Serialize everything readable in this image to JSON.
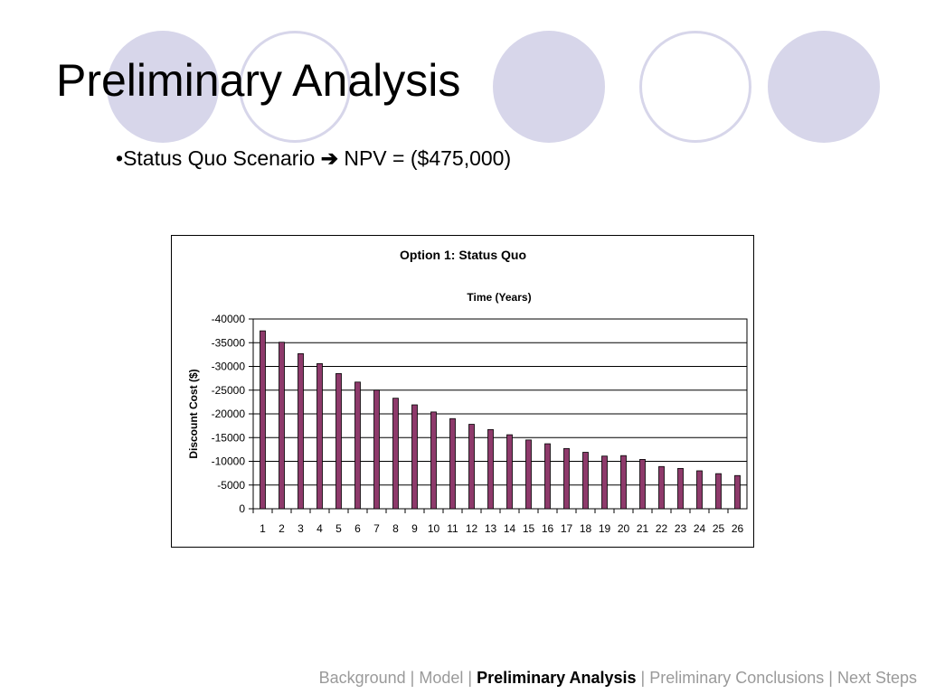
{
  "slide": {
    "title": "Preliminary Analysis",
    "bullet": {
      "marker": "•",
      "text": "Status Quo Scenario",
      "arrow": "➔",
      "result": "NPV = ($475,000)"
    }
  },
  "footer": {
    "items": [
      "Background",
      "Model",
      "Preliminary Analysis",
      "Preliminary Conclusions",
      "Next Steps"
    ],
    "current_index": 2,
    "separator": " | "
  },
  "colors": {
    "decor_circle": "#d7d6ea",
    "bar_fill": "#8e3a6b",
    "footer_text": "#9a9a9a"
  },
  "chart_data": {
    "type": "bar",
    "title": "Option 1: Status Quo",
    "xlabel": "Time (Years)",
    "ylabel": "Discount Cost ($)",
    "categories": [
      "1",
      "2",
      "3",
      "4",
      "5",
      "6",
      "7",
      "8",
      "9",
      "10",
      "11",
      "12",
      "13",
      "14",
      "15",
      "16",
      "17",
      "18",
      "19",
      "20",
      "21",
      "22",
      "23",
      "24",
      "25",
      "26"
    ],
    "series": [
      {
        "values": [
          -37500,
          -35100,
          -32700,
          -30600,
          -28500,
          -26700,
          -25000,
          -23300,
          -21900,
          -20400,
          -19000,
          -17800,
          -16700,
          -15600,
          -14500,
          -13700,
          -12700,
          -11900,
          -11100,
          -11200,
          -10400,
          -8900,
          -8500,
          -8000,
          -7400,
          -7000
        ]
      }
    ],
    "y_ticks": [
      "-40000",
      "-35000",
      "-30000",
      "-25000",
      "-20000",
      "-15000",
      "-10000",
      "-5000",
      "0"
    ],
    "ylim": [
      0,
      -40000
    ],
    "y_axis_reversed": true,
    "xlabel_position": "top",
    "grid": true,
    "legend": "none"
  }
}
